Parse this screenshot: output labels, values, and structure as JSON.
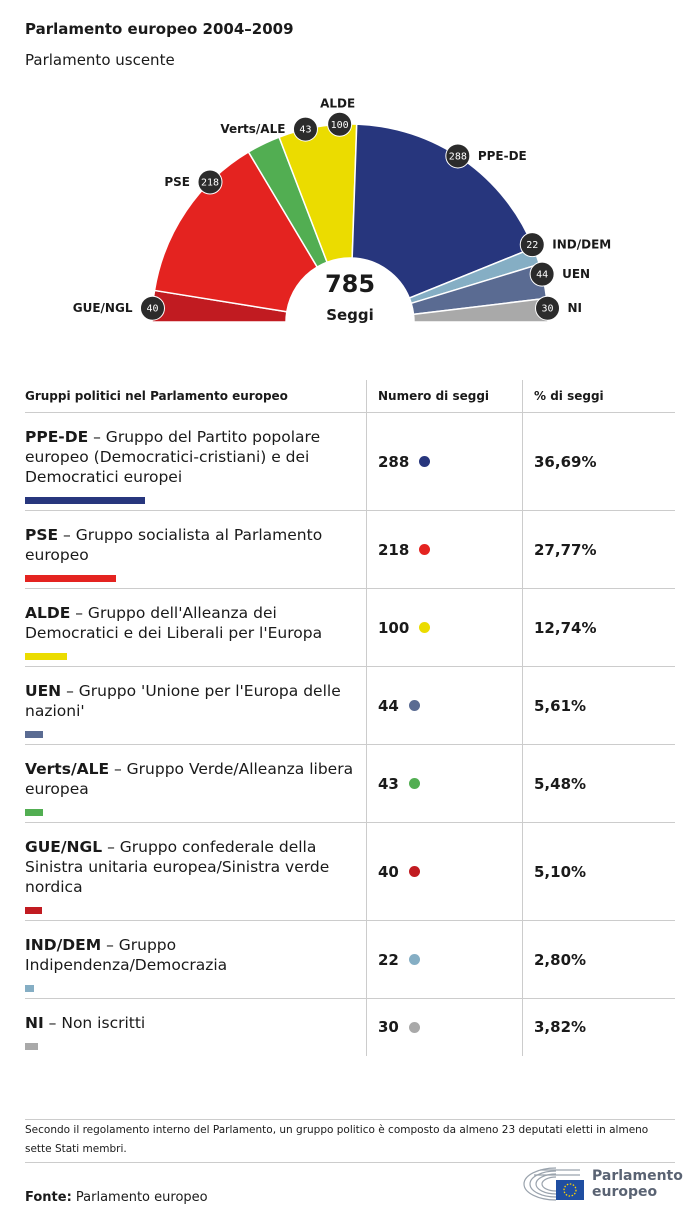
{
  "title": "Parlamento europeo 2004–2009",
  "subtitle": "Parlamento uscente",
  "chart_data": {
    "type": "pie",
    "shape": "hemicycle",
    "total": 785,
    "total_label": "Seggi",
    "segments": [
      {
        "name": "GUE/NGL",
        "value": 40,
        "color": "#c11b21"
      },
      {
        "name": "PSE",
        "value": 218,
        "color": "#e42320"
      },
      {
        "name": "Verts/ALE",
        "value": 43,
        "color": "#52ae52"
      },
      {
        "name": "ALDE",
        "value": 100,
        "color": "#ebdc00"
      },
      {
        "name": "PPE-DE",
        "value": 288,
        "color": "#27367d"
      },
      {
        "name": "IND/DEM",
        "value": 22,
        "color": "#85aec4"
      },
      {
        "name": "UEN",
        "value": 44,
        "color": "#5a6b92"
      },
      {
        "name": "NI",
        "value": 30,
        "color": "#a9a9a9"
      }
    ]
  },
  "table": {
    "headers": [
      "Gruppi politici nel Parlamento europeo",
      "Numero di seggi",
      "% di seggi"
    ],
    "rows": [
      {
        "abbr": "PPE-DE",
        "name": " – Gruppo del Partito popolare europeo (Democratici-cristiani) e dei Democratici europei",
        "seats": "288",
        "pct": "36,69%",
        "color": "#27367d",
        "value": 288
      },
      {
        "abbr": "PSE",
        "name": " – Gruppo socialista al Parlamento europeo",
        "seats": "218",
        "pct": "27,77%",
        "color": "#e42320",
        "value": 218
      },
      {
        "abbr": "ALDE",
        "name": " – Gruppo dell'Alleanza dei Democratici e dei Liberali per l'Europa",
        "seats": "100",
        "pct": "12,74%",
        "color": "#ebdc00",
        "value": 100
      },
      {
        "abbr": "UEN",
        "name": " – Gruppo 'Unione per l'Europa delle nazioni'",
        "seats": "44",
        "pct": "5,61%",
        "color": "#5a6b92",
        "value": 44
      },
      {
        "abbr": "Verts/ALE",
        "name": " – Gruppo Verde/Alleanza libera europea",
        "seats": "43",
        "pct": "5,48%",
        "color": "#52ae52",
        "value": 43
      },
      {
        "abbr": "GUE/NGL",
        "name": " – Gruppo confederale della Sinistra unitaria europea/Sinistra verde nordica",
        "seats": "40",
        "pct": "5,10%",
        "color": "#c11b21",
        "value": 40
      },
      {
        "abbr": "IND/DEM",
        "name": " – Gruppo Indipendenza/Democrazia",
        "seats": "22",
        "pct": "2,80%",
        "color": "#85aec4",
        "value": 22
      },
      {
        "abbr": "NI",
        "name": " – Non iscritti",
        "seats": "30",
        "pct": "3,82%",
        "color": "#a9a9a9",
        "value": 30
      }
    ]
  },
  "note": "Secondo il regolamento interno del Parlamento, un gruppo politico è composto da almeno 23 deputati eletti in almeno sette Stati membri.",
  "source": {
    "label": "Fonte:",
    "text": " Parlamento europeo"
  },
  "logo": {
    "line1": "Parlamento",
    "line2": "europeo"
  }
}
